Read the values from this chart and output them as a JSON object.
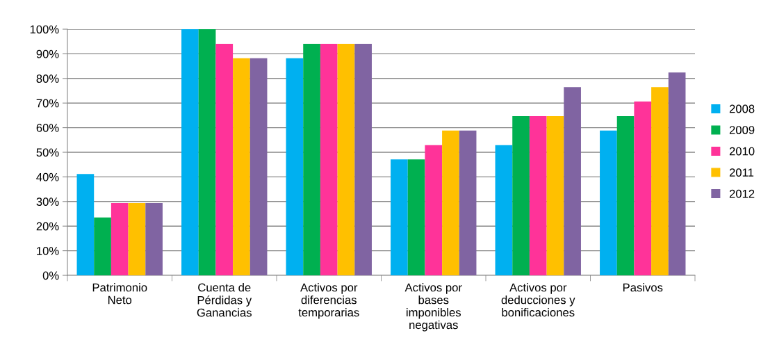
{
  "chart_data": {
    "type": "bar",
    "categories": [
      "Patrimonio\nNeto",
      "Cuenta de\nPérdidas y\nGanancias",
      "Activos por\ndiferencias\ntemporarias",
      "Activos por\nbases\nimponibles\nnegativas",
      "Activos por\ndeducciones y\nbonificaciones",
      "Pasivos"
    ],
    "series": [
      {
        "name": "2008",
        "color": "#00b0f0",
        "values": [
          41.2,
          100,
          88.2,
          47.1,
          52.9,
          58.8
        ]
      },
      {
        "name": "2009",
        "color": "#00b050",
        "values": [
          23.5,
          100,
          94.1,
          47.1,
          64.7,
          64.7
        ]
      },
      {
        "name": "2010",
        "color": "#ff3399",
        "values": [
          29.4,
          94.1,
          94.1,
          52.9,
          64.7,
          70.6
        ]
      },
      {
        "name": "2011",
        "color": "#ffc000",
        "values": [
          29.4,
          88.2,
          94.1,
          58.8,
          64.7,
          76.5
        ]
      },
      {
        "name": "2012",
        "color": "#8064a2",
        "values": [
          29.4,
          88.2,
          94.1,
          58.8,
          76.5,
          82.4
        ]
      }
    ],
    "ylim": [
      0,
      100
    ],
    "yticks": [
      {
        "value": 0,
        "label": "0%"
      },
      {
        "value": 10,
        "label": "10%"
      },
      {
        "value": 20,
        "label": "20%"
      },
      {
        "value": 30,
        "label": "30%"
      },
      {
        "value": 40,
        "label": "40%"
      },
      {
        "value": 50,
        "label": "50%"
      },
      {
        "value": 60,
        "label": "60%"
      },
      {
        "value": 70,
        "label": "70%"
      },
      {
        "value": 80,
        "label": "80%"
      },
      {
        "value": 90,
        "label": "90%"
      },
      {
        "value": 100,
        "label": "100%"
      }
    ],
    "grid": "y",
    "legend": "right"
  }
}
